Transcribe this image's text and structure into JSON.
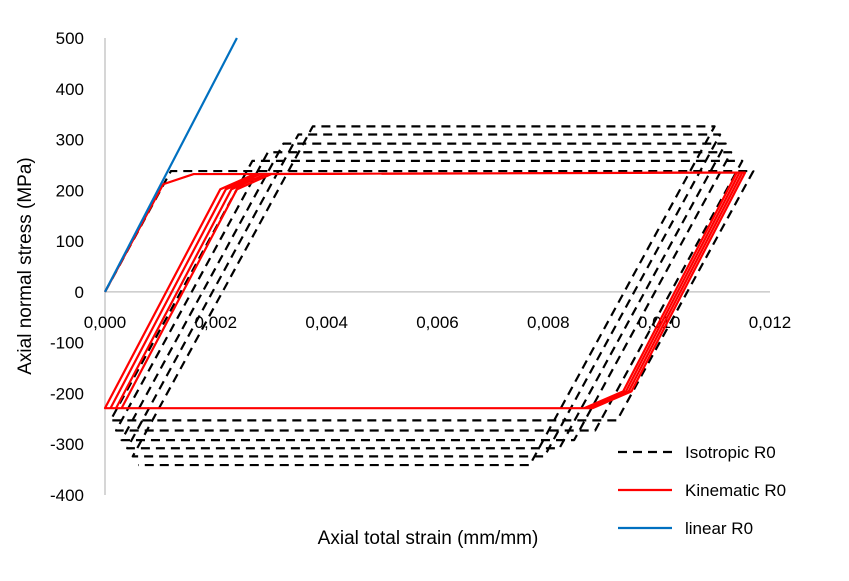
{
  "chart_data": {
    "type": "line",
    "title": "",
    "xlabel": "Axial total strain (mm/mm)",
    "ylabel": "Axial normal stress (MPa)",
    "xlim": [
      0,
      0.012
    ],
    "ylim": [
      -400,
      500
    ],
    "x_ticks": [
      "0,000",
      "0,002",
      "0,004",
      "0,006",
      "0,008",
      "0,010",
      "0,012"
    ],
    "x_tick_values": [
      0,
      0.002,
      0.004,
      0.006,
      0.008,
      0.01,
      0.012
    ],
    "y_ticks": [
      "500",
      "400",
      "300",
      "200",
      "100",
      "0",
      "-100",
      "-200",
      "-300",
      "-400"
    ],
    "y_tick_values": [
      500,
      400,
      300,
      200,
      100,
      0,
      -100,
      -200,
      -300,
      -400
    ],
    "grid": false,
    "legend_position": "bottom-right",
    "series": [
      {
        "name": "Isotropic R0",
        "color": "#000000",
        "dash": "dashed",
        "points": [
          [
            0,
            0
          ],
          [
            0.00119,
            238
          ],
          [
            0.0117,
            238
          ],
          [
            0.00924,
            -253
          ],
          [
            0.0001,
            -253
          ],
          [
            0.00266,
            258
          ],
          [
            0.0115,
            258
          ],
          [
            0.008845,
            -273
          ],
          [
            0.0002,
            -273
          ],
          [
            0.00294,
            275
          ],
          [
            0.0113,
            275
          ],
          [
            0.008465,
            -292
          ],
          [
            0.0003,
            -292
          ],
          [
            0.00322,
            292
          ],
          [
            0.0112,
            292
          ],
          [
            0.0082,
            -308
          ],
          [
            0.0004,
            -308
          ],
          [
            0.00349,
            310
          ],
          [
            0.0111,
            310
          ],
          [
            0.00793,
            -324
          ],
          [
            0.0005,
            -324
          ],
          [
            0.00375,
            326
          ],
          [
            0.011,
            326
          ],
          [
            0.007665,
            -341
          ],
          [
            0.0006,
            -341
          ]
        ]
      },
      {
        "name": "Kinematic R0",
        "color": "#ff0000",
        "dash": "solid",
        "points": [
          [
            0,
            0
          ],
          [
            0.00105,
            212
          ],
          [
            0.0016,
            232
          ],
          [
            0.01155,
            235
          ],
          [
            0.0095,
            -196
          ],
          [
            0.0088,
            -229
          ],
          [
            0,
            -229
          ],
          [
            0.00208,
            202
          ],
          [
            0.0027,
            232
          ],
          [
            0.0115,
            235
          ],
          [
            0.00945,
            -196
          ],
          [
            0.00875,
            -229
          ],
          [
            0.0001,
            -229
          ],
          [
            0.00218,
            202
          ],
          [
            0.0028,
            232
          ],
          [
            0.01145,
            235
          ],
          [
            0.0094,
            -196
          ],
          [
            0.0087,
            -229
          ],
          [
            0.0002,
            -229
          ],
          [
            0.00228,
            202
          ],
          [
            0.0029,
            232
          ],
          [
            0.0114,
            235
          ],
          [
            0.00935,
            -196
          ],
          [
            0.00865,
            -229
          ],
          [
            0.0003,
            -229
          ],
          [
            0.00238,
            202
          ],
          [
            0.003,
            232
          ],
          [
            0.0113,
            235
          ]
        ]
      },
      {
        "name": "linear R0",
        "color": "#0070c0",
        "dash": "solid",
        "points": [
          [
            0,
            0
          ],
          [
            0.00238,
            500
          ]
        ]
      }
    ]
  }
}
